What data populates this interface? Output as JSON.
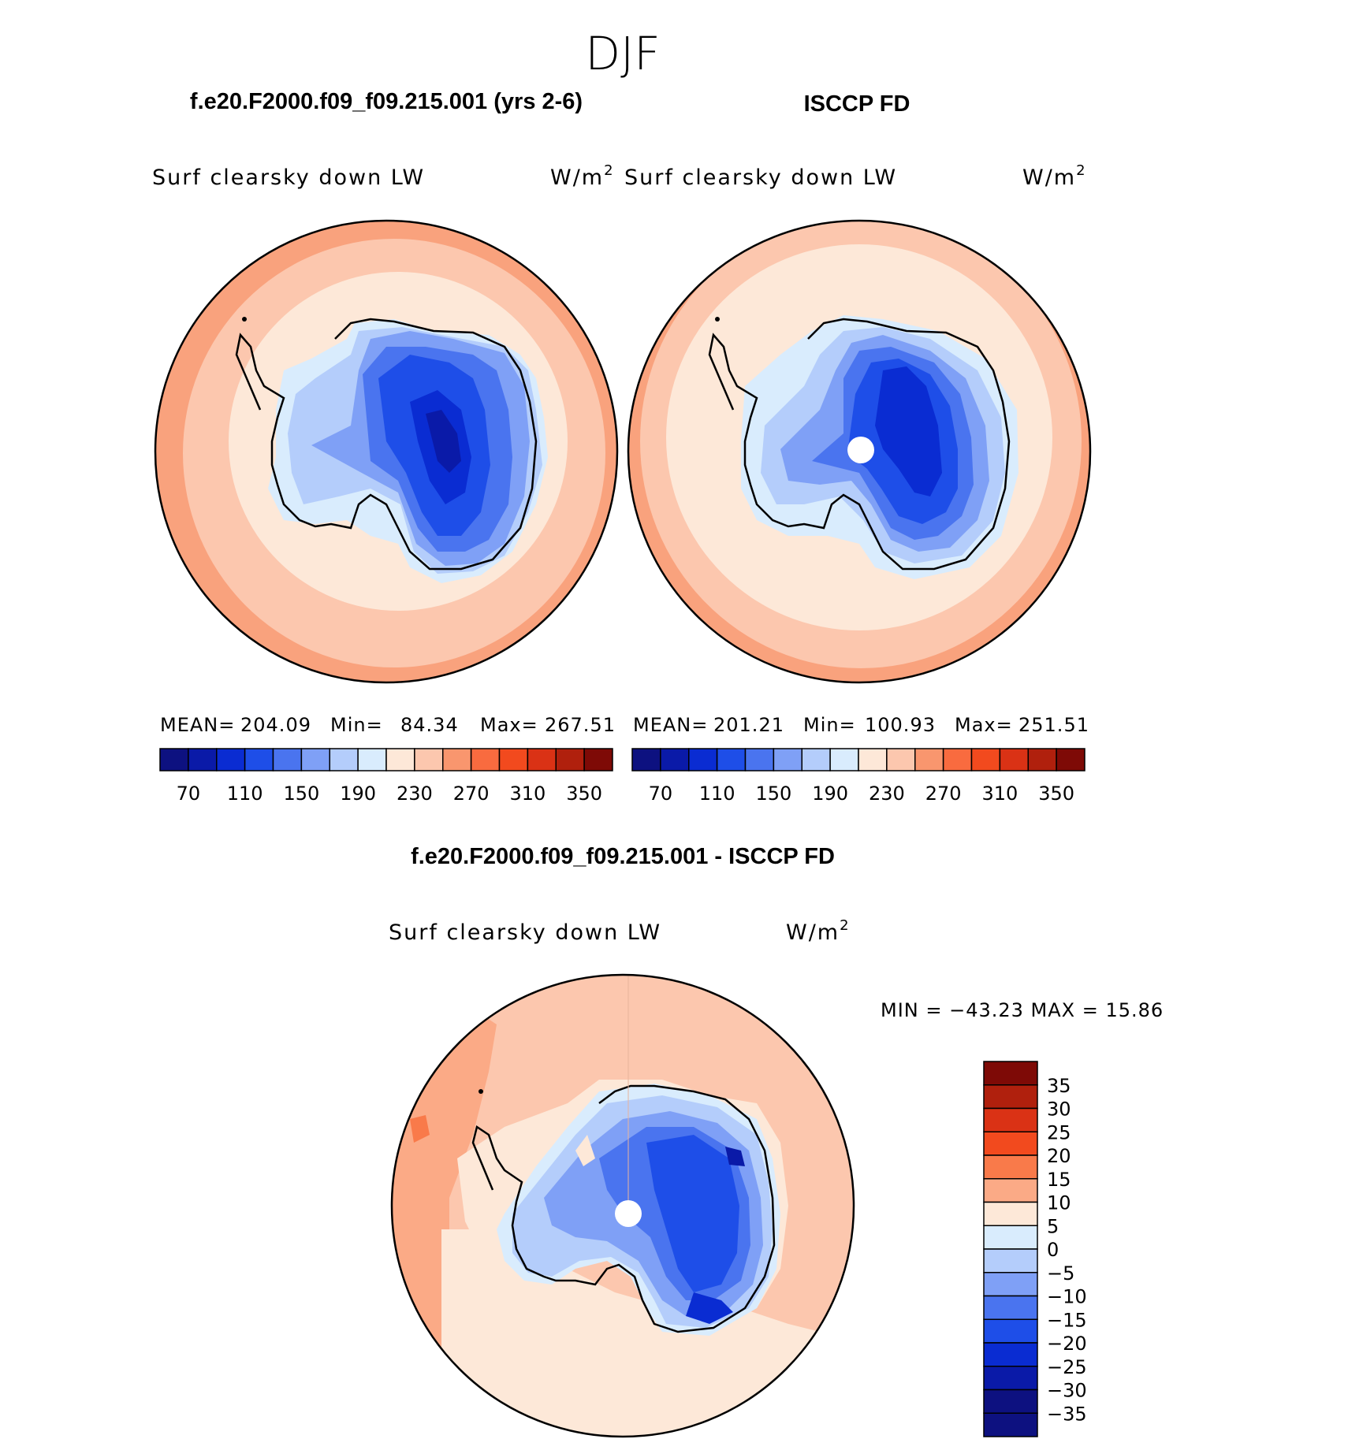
{
  "title": "DJF",
  "panels": [
    {
      "case": "f.e20.F2000.f09_f09.215.001 (yrs 2-6)",
      "variable": "Surf clearsky down LW",
      "units_base": "W/m",
      "units_exp": "2",
      "stats": {
        "mean_label": "MEAN=",
        "mean": "204.09",
        "min_label": "Min=",
        "min": "84.34",
        "max_label": "Max=",
        "max": "267.51"
      }
    },
    {
      "case": "ISCCP FD",
      "variable": "Surf clearsky down LW",
      "units_base": "W/m",
      "units_exp": "2",
      "stats": {
        "mean_label": "MEAN=",
        "mean": "201.21",
        "min_label": "Min=",
        "min": "100.93",
        "max_label": "Max=",
        "max": "251.51"
      }
    },
    {
      "case": "f.e20.F2000.f09_f09.215.001 - ISCCP FD",
      "variable": "Surf clearsky down LW",
      "units_base": "W/m",
      "units_exp": "2",
      "stats": {
        "minmax_text": "MIN = −43.23 MAX =   15.86"
      }
    }
  ],
  "colorbars": {
    "absolute": {
      "colors": [
        "#0d1180",
        "#0a1aa8",
        "#0a2cd2",
        "#1e4ee8",
        "#4a74ef",
        "#7fa0f6",
        "#b4cdfb",
        "#d9ecfd",
        "#fde8d8",
        "#fcc7ae",
        "#f9966e",
        "#f96b3f",
        "#f24a1e",
        "#da3215",
        "#b0200d",
        "#7e0a06"
      ],
      "tick_labels": [
        "70",
        "110",
        "150",
        "190",
        "230",
        "270",
        "310",
        "350"
      ]
    },
    "difference": {
      "colors": [
        "#7e0a06",
        "#b0200d",
        "#da3215",
        "#f24a1e",
        "#f97a4a",
        "#fbaa86",
        "#fde8d8",
        "#d9ecfd",
        "#b4cdfb",
        "#7fa0f6",
        "#4a74ef",
        "#1e4ee8",
        "#0a2cd2",
        "#0a1aa8",
        "#0d1180"
      ],
      "tick_labels": [
        "35",
        "30",
        "25",
        "20",
        "15",
        "10",
        "5",
        "0",
        "−5",
        "−10",
        "−15",
        "−20",
        "−25",
        "−30",
        "−35"
      ]
    }
  },
  "chart_data": [
    {
      "type": "heatmap",
      "title": "f.e20.F2000.f09_f09.215.001 (yrs 2-6)",
      "variable": "Surf clearsky down LW",
      "units": "W/m2",
      "projection": "south polar stereographic",
      "contour_levels": [
        70,
        90,
        110,
        130,
        150,
        170,
        190,
        210,
        230,
        250,
        270,
        290,
        310,
        330,
        350
      ],
      "mean": 204.09,
      "min": 84.34,
      "max": 267.51
    },
    {
      "type": "heatmap",
      "title": "ISCCP FD",
      "variable": "Surf clearsky down LW",
      "units": "W/m2",
      "projection": "south polar stereographic",
      "contour_levels": [
        70,
        90,
        110,
        130,
        150,
        170,
        190,
        210,
        230,
        250,
        270,
        290,
        310,
        330,
        350
      ],
      "mean": 201.21,
      "min": 100.93,
      "max": 251.51
    },
    {
      "type": "heatmap",
      "title": "f.e20.F2000.f09_f09.215.001 - ISCCP FD",
      "variable": "Surf clearsky down LW",
      "units": "W/m2",
      "projection": "south polar stereographic",
      "contour_levels": [
        -35,
        -30,
        -25,
        -20,
        -15,
        -10,
        -5,
        0,
        5,
        10,
        15,
        20,
        25,
        30,
        35
      ],
      "min": -43.23,
      "max": 15.86
    }
  ]
}
